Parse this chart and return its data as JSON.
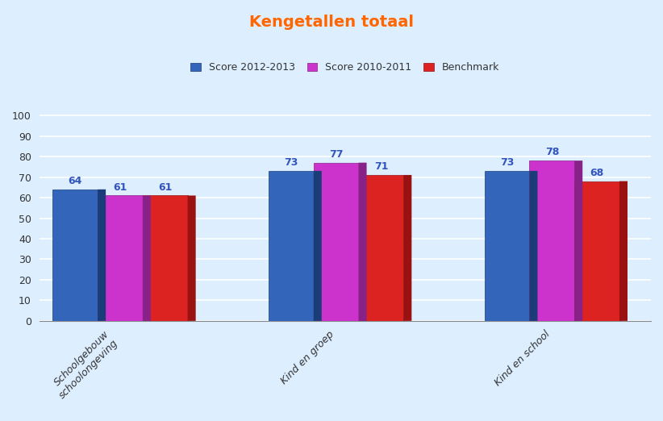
{
  "title": "Kengetallen totaal",
  "title_color": "#FF6600",
  "categories": [
    "Schoolgebouw\nschoolongeving",
    "Kind en groep",
    "Kind en school"
  ],
  "series": [
    {
      "label": "Score 2012-2013",
      "color": "#3366BB",
      "dark_color": "#1A3D7A",
      "values": [
        64,
        73,
        73
      ]
    },
    {
      "label": "Score 2010-2011",
      "color": "#CC33CC",
      "dark_color": "#882288",
      "values": [
        61,
        77,
        78
      ]
    },
    {
      "label": "Benchmark",
      "color": "#DD2222",
      "dark_color": "#991111",
      "values": [
        61,
        71,
        68
      ]
    }
  ],
  "ylim": [
    0,
    110
  ],
  "yticks": [
    0,
    10,
    20,
    30,
    40,
    50,
    60,
    70,
    80,
    90,
    100
  ],
  "bar_width": 0.25,
  "background_color": "#DDEEFF",
  "plot_bg_color": "#DDEEFF",
  "grid_color": "#FFFFFF",
  "label_color": "#3355BB",
  "label_fontsize": 9,
  "tick_label_fontsize": 9,
  "legend_fontsize": 9,
  "title_fontsize": 14
}
